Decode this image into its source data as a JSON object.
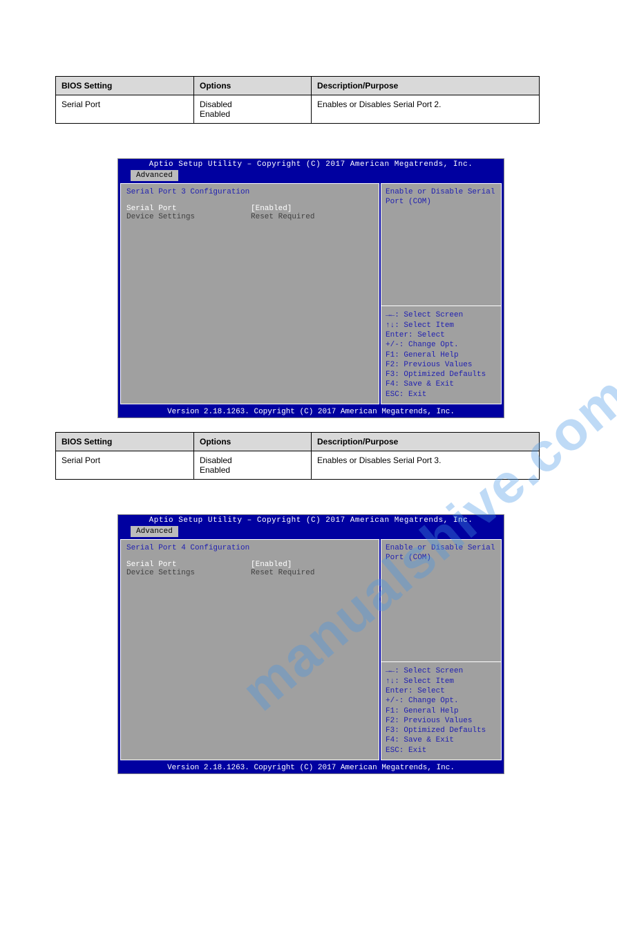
{
  "watermark": "manualshive.com",
  "tables": [
    {
      "headers": [
        "BIOS Setting",
        "Options",
        "Description/Purpose"
      ],
      "row": [
        "Serial Port",
        "Disabled\nEnabled",
        "Enables or Disables Serial Port 2."
      ]
    },
    {
      "headers": [
        "BIOS Setting",
        "Options",
        "Description/Purpose"
      ],
      "row": [
        "Serial Port",
        "Disabled\nEnabled",
        "Enables or Disables Serial Port 3."
      ]
    }
  ],
  "bios": {
    "title": "Aptio Setup Utility – Copyright (C) 2017 American Megatrends, Inc.",
    "tab": "Advanced",
    "footer": "Version 2.18.1263. Copyright (C) 2017 American Megatrends, Inc.",
    "help_desc": "Enable or Disable Serial Port (COM)",
    "help_keys": [
      "→←: Select Screen",
      "↑↓: Select Item",
      "Enter: Select",
      "+/-: Change Opt.",
      "F1: General Help",
      "F2: Previous Values",
      "F3: Optimized Defaults",
      "F4: Save & Exit",
      "ESC: Exit"
    ],
    "screens": [
      {
        "heading": "Serial Port 3 Configuration",
        "rows": [
          {
            "label": "Serial Port",
            "value": "[Enabled]",
            "selected": true
          },
          {
            "label": "Device Settings",
            "value": "Reset Required",
            "selected": false
          }
        ]
      },
      {
        "heading": "Serial Port 4 Configuration",
        "rows": [
          {
            "label": "Serial Port",
            "value": "[Enabled]",
            "selected": true
          },
          {
            "label": "Device Settings",
            "value": "Reset Required",
            "selected": false
          }
        ]
      }
    ]
  },
  "colors": {
    "bios_bar": "#0000a0",
    "bios_panel": "#a0a0a0",
    "help_text": "#2020b0",
    "table_header_bg": "#d9d9d9"
  }
}
